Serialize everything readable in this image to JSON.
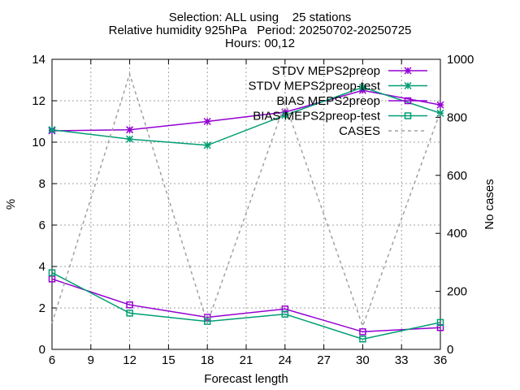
{
  "chart_data": {
    "type": "line",
    "title_lines": [
      "Selection: ALL using    25 stations",
      "Relative humidity 925hPa   Period: 20250702-20250725",
      "Hours: 00,12"
    ],
    "xlabel": "Forecast length",
    "ylabel": "%",
    "y2label": "No cases",
    "xlim": [
      6,
      36
    ],
    "ylim": [
      0,
      14
    ],
    "y2lim": [
      0,
      1000
    ],
    "xticks": [
      6,
      9,
      12,
      15,
      18,
      21,
      24,
      27,
      30,
      33,
      36
    ],
    "yticks": [
      0,
      2,
      4,
      6,
      8,
      10,
      12,
      14
    ],
    "y2ticks": [
      0,
      200,
      400,
      600,
      800,
      1000
    ],
    "grid": true,
    "legend_position": "top-right",
    "x": [
      6,
      12,
      18,
      24,
      30,
      36
    ],
    "series": [
      {
        "name": "STDV MEPS2preop",
        "axis": "y",
        "color": "#9400d3",
        "marker": "star",
        "dash": "solid",
        "values": [
          10.55,
          10.6,
          11.0,
          11.45,
          12.5,
          11.8
        ]
      },
      {
        "name": "STDV MEPS2preop-test",
        "axis": "y",
        "color": "#009e73",
        "marker": "star",
        "dash": "solid",
        "values": [
          10.6,
          10.15,
          9.85,
          11.3,
          12.65,
          11.4
        ]
      },
      {
        "name": "BIAS MEPS2preop",
        "axis": "y",
        "color": "#9400d3",
        "marker": "square",
        "dash": "solid",
        "values": [
          3.4,
          2.15,
          1.55,
          1.95,
          0.85,
          1.05
        ]
      },
      {
        "name": "BIAS MEPS2preop-test",
        "axis": "y",
        "color": "#009e73",
        "marker": "square",
        "dash": "solid",
        "values": [
          3.7,
          1.75,
          1.35,
          1.7,
          0.5,
          1.3
        ]
      },
      {
        "name": "CASES",
        "axis": "y2",
        "color": "#a0a0a0",
        "marker": "none",
        "dash": "dashed",
        "values": [
          90,
          950,
          90,
          850,
          80,
          820
        ]
      }
    ]
  }
}
